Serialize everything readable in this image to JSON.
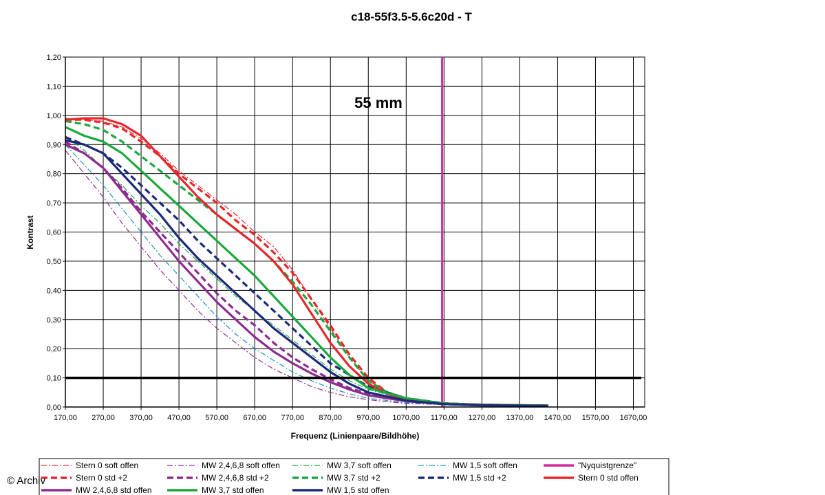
{
  "chart_data": {
    "type": "line",
    "title": "c18-55f3.5-5.6c20d - T",
    "xlabel": "Frequenz (Linienpaare/Bildhöhe)",
    "ylabel": "Kontrast",
    "annotation": "55 mm",
    "xlim": [
      170,
      1700
    ],
    "ylim": [
      0,
      1.2
    ],
    "x_ticks": [
      "170,00",
      "270,00",
      "370,00",
      "470,00",
      "570,00",
      "670,00",
      "770,00",
      "870,00",
      "970,00",
      "1070,00",
      "1170,00",
      "1270,00",
      "1370,00",
      "1470,00",
      "1570,00",
      "1670,00"
    ],
    "y_ticks": [
      "0,00",
      "0,10",
      "0,20",
      "0,30",
      "0,40",
      "0,50",
      "0,60",
      "0,70",
      "0,80",
      "0,90",
      "1,00",
      "1,10",
      "1,20"
    ],
    "grid": true,
    "legend_position": "bottom",
    "series": [
      {
        "name": "Stern 0 soft offen",
        "color": "#e8262b",
        "style": "dashdot",
        "width": 1.2,
        "points": [
          [
            170,
            0.99
          ],
          [
            220,
            0.985
          ],
          [
            270,
            0.98
          ],
          [
            320,
            0.96
          ],
          [
            370,
            0.92
          ],
          [
            420,
            0.87
          ],
          [
            470,
            0.81
          ],
          [
            520,
            0.76
          ],
          [
            570,
            0.71
          ],
          [
            620,
            0.66
          ],
          [
            670,
            0.6
          ],
          [
            720,
            0.55
          ],
          [
            770,
            0.47
          ],
          [
            820,
            0.37
          ],
          [
            870,
            0.27
          ],
          [
            920,
            0.17
          ],
          [
            970,
            0.09
          ],
          [
            1020,
            0.05
          ],
          [
            1070,
            0.03
          ],
          [
            1170,
            0.012
          ],
          [
            1270,
            0.008
          ],
          [
            1370,
            0.005
          ],
          [
            1445,
            0.005
          ]
        ]
      },
      {
        "name": "MW 2,4,6,8 soft offen",
        "color": "#8e2c90",
        "style": "dashdot",
        "width": 1.2,
        "points": [
          [
            170,
            0.88
          ],
          [
            220,
            0.8
          ],
          [
            270,
            0.72
          ],
          [
            320,
            0.63
          ],
          [
            370,
            0.55
          ],
          [
            420,
            0.47
          ],
          [
            470,
            0.4
          ],
          [
            520,
            0.33
          ],
          [
            570,
            0.27
          ],
          [
            620,
            0.22
          ],
          [
            670,
            0.17
          ],
          [
            720,
            0.13
          ],
          [
            770,
            0.1
          ],
          [
            820,
            0.07
          ],
          [
            870,
            0.05
          ],
          [
            920,
            0.035
          ],
          [
            970,
            0.025
          ],
          [
            1070,
            0.012
          ],
          [
            1170,
            0.008
          ],
          [
            1270,
            0.005
          ],
          [
            1445,
            0.004
          ]
        ]
      },
      {
        "name": "MW 3,7 soft offen",
        "color": "#1aa83c",
        "style": "dashdot",
        "width": 1.2,
        "points": [
          [
            170,
            0.93
          ],
          [
            220,
            0.88
          ],
          [
            270,
            0.82
          ],
          [
            320,
            0.76
          ],
          [
            370,
            0.69
          ],
          [
            420,
            0.63
          ],
          [
            470,
            0.56
          ],
          [
            520,
            0.5
          ],
          [
            570,
            0.44
          ],
          [
            620,
            0.38
          ],
          [
            670,
            0.33
          ],
          [
            720,
            0.28
          ],
          [
            770,
            0.23
          ],
          [
            820,
            0.18
          ],
          [
            870,
            0.13
          ],
          [
            920,
            0.09
          ],
          [
            970,
            0.06
          ],
          [
            1070,
            0.025
          ],
          [
            1170,
            0.012
          ],
          [
            1270,
            0.007
          ],
          [
            1445,
            0.005
          ]
        ]
      },
      {
        "name": "MW 1,5 soft offen",
        "color": "#1a8fc9",
        "style": "dashdot",
        "width": 1.2,
        "points": [
          [
            170,
            0.9
          ],
          [
            220,
            0.83
          ],
          [
            270,
            0.76
          ],
          [
            320,
            0.68
          ],
          [
            370,
            0.6
          ],
          [
            420,
            0.52
          ],
          [
            470,
            0.45
          ],
          [
            520,
            0.38
          ],
          [
            570,
            0.31
          ],
          [
            620,
            0.25
          ],
          [
            670,
            0.2
          ],
          [
            720,
            0.16
          ],
          [
            770,
            0.12
          ],
          [
            820,
            0.09
          ],
          [
            870,
            0.065
          ],
          [
            920,
            0.045
          ],
          [
            970,
            0.03
          ],
          [
            1070,
            0.015
          ],
          [
            1170,
            0.008
          ],
          [
            1270,
            0.005
          ],
          [
            1445,
            0.004
          ]
        ]
      },
      {
        "name": "\"Nyquistgrenze\"",
        "color": "#d62a9b",
        "style": "solid",
        "width": 3,
        "points": [
          [
            1165,
            0
          ],
          [
            1165,
            1.2
          ]
        ]
      },
      {
        "name": "Stern 0 std +2",
        "color": "#e8262b",
        "style": "dashed",
        "width": 3.2,
        "points": [
          [
            170,
            0.985
          ],
          [
            220,
            0.985
          ],
          [
            270,
            0.975
          ],
          [
            320,
            0.955
          ],
          [
            370,
            0.91
          ],
          [
            420,
            0.86
          ],
          [
            470,
            0.8
          ],
          [
            520,
            0.75
          ],
          [
            570,
            0.7
          ],
          [
            620,
            0.64
          ],
          [
            670,
            0.59
          ],
          [
            720,
            0.53
          ],
          [
            770,
            0.46
          ],
          [
            820,
            0.37
          ],
          [
            870,
            0.28
          ],
          [
            920,
            0.18
          ],
          [
            970,
            0.1
          ],
          [
            1020,
            0.05
          ],
          [
            1070,
            0.03
          ],
          [
            1170,
            0.012
          ],
          [
            1270,
            0.008
          ],
          [
            1370,
            0.005
          ],
          [
            1445,
            0.005
          ]
        ]
      },
      {
        "name": "MW 2,4,6,8 std +2",
        "color": "#8e2c90",
        "style": "dashed",
        "width": 3.2,
        "points": [
          [
            170,
            0.91
          ],
          [
            220,
            0.87
          ],
          [
            270,
            0.82
          ],
          [
            320,
            0.75
          ],
          [
            370,
            0.67
          ],
          [
            420,
            0.6
          ],
          [
            470,
            0.53
          ],
          [
            520,
            0.46
          ],
          [
            570,
            0.39
          ],
          [
            620,
            0.33
          ],
          [
            670,
            0.28
          ],
          [
            720,
            0.22
          ],
          [
            770,
            0.17
          ],
          [
            820,
            0.13
          ],
          [
            870,
            0.095
          ],
          [
            920,
            0.065
          ],
          [
            970,
            0.045
          ],
          [
            1070,
            0.02
          ],
          [
            1170,
            0.01
          ],
          [
            1270,
            0.006
          ],
          [
            1445,
            0.004
          ]
        ]
      },
      {
        "name": "MW 3,7 std +2",
        "color": "#1aa83c",
        "style": "dashed",
        "width": 3.2,
        "points": [
          [
            170,
            0.98
          ],
          [
            220,
            0.97
          ],
          [
            270,
            0.95
          ],
          [
            320,
            0.91
          ],
          [
            370,
            0.86
          ],
          [
            420,
            0.81
          ],
          [
            470,
            0.76
          ],
          [
            520,
            0.71
          ],
          [
            570,
            0.66
          ],
          [
            620,
            0.61
          ],
          [
            670,
            0.56
          ],
          [
            720,
            0.5
          ],
          [
            770,
            0.43
          ],
          [
            820,
            0.35
          ],
          [
            870,
            0.26
          ],
          [
            920,
            0.17
          ],
          [
            970,
            0.09
          ],
          [
            1020,
            0.05
          ],
          [
            1070,
            0.03
          ],
          [
            1170,
            0.012
          ],
          [
            1270,
            0.008
          ],
          [
            1445,
            0.005
          ]
        ]
      },
      {
        "name": "MW 1,5 std +2",
        "color": "#1b2a7a",
        "style": "dashed",
        "width": 3.2,
        "points": [
          [
            170,
            0.925
          ],
          [
            220,
            0.9
          ],
          [
            270,
            0.87
          ],
          [
            320,
            0.82
          ],
          [
            370,
            0.76
          ],
          [
            420,
            0.7
          ],
          [
            470,
            0.64
          ],
          [
            520,
            0.57
          ],
          [
            570,
            0.51
          ],
          [
            620,
            0.45
          ],
          [
            670,
            0.39
          ],
          [
            720,
            0.33
          ],
          [
            770,
            0.27
          ],
          [
            820,
            0.21
          ],
          [
            870,
            0.15
          ],
          [
            920,
            0.11
          ],
          [
            970,
            0.07
          ],
          [
            1070,
            0.03
          ],
          [
            1170,
            0.013
          ],
          [
            1270,
            0.007
          ],
          [
            1445,
            0.005
          ]
        ]
      },
      {
        "name": "Stern 0 std offen",
        "color": "#e8262b",
        "style": "solid",
        "width": 3.2,
        "points": [
          [
            170,
            0.985
          ],
          [
            220,
            0.99
          ],
          [
            270,
            0.99
          ],
          [
            320,
            0.97
          ],
          [
            370,
            0.93
          ],
          [
            420,
            0.86
          ],
          [
            470,
            0.79
          ],
          [
            520,
            0.72
          ],
          [
            570,
            0.66
          ],
          [
            620,
            0.61
          ],
          [
            670,
            0.56
          ],
          [
            720,
            0.5
          ],
          [
            770,
            0.42
          ],
          [
            820,
            0.32
          ],
          [
            870,
            0.22
          ],
          [
            920,
            0.14
          ],
          [
            970,
            0.08
          ],
          [
            1020,
            0.045
          ],
          [
            1070,
            0.025
          ],
          [
            1170,
            0.012
          ],
          [
            1270,
            0.008
          ],
          [
            1445,
            0.005
          ]
        ]
      },
      {
        "name": "MW 2,4,6,8 std offen",
        "color": "#8e2c90",
        "style": "solid",
        "width": 3.2,
        "points": [
          [
            170,
            0.9
          ],
          [
            220,
            0.87
          ],
          [
            270,
            0.82
          ],
          [
            320,
            0.74
          ],
          [
            370,
            0.66
          ],
          [
            420,
            0.58
          ],
          [
            470,
            0.5
          ],
          [
            520,
            0.43
          ],
          [
            570,
            0.36
          ],
          [
            620,
            0.3
          ],
          [
            670,
            0.24
          ],
          [
            720,
            0.19
          ],
          [
            770,
            0.15
          ],
          [
            820,
            0.115
          ],
          [
            870,
            0.085
          ],
          [
            920,
            0.06
          ],
          [
            970,
            0.04
          ],
          [
            1070,
            0.02
          ],
          [
            1170,
            0.01
          ],
          [
            1270,
            0.006
          ],
          [
            1445,
            0.004
          ]
        ]
      },
      {
        "name": "MW 3,7 std offen",
        "color": "#1aa83c",
        "style": "solid",
        "width": 3.2,
        "points": [
          [
            170,
            0.96
          ],
          [
            220,
            0.93
          ],
          [
            270,
            0.91
          ],
          [
            320,
            0.87
          ],
          [
            370,
            0.81
          ],
          [
            420,
            0.75
          ],
          [
            470,
            0.69
          ],
          [
            520,
            0.63
          ],
          [
            570,
            0.57
          ],
          [
            620,
            0.51
          ],
          [
            670,
            0.45
          ],
          [
            720,
            0.38
          ],
          [
            770,
            0.31
          ],
          [
            820,
            0.24
          ],
          [
            870,
            0.17
          ],
          [
            920,
            0.11
          ],
          [
            970,
            0.065
          ],
          [
            1070,
            0.03
          ],
          [
            1170,
            0.012
          ],
          [
            1270,
            0.007
          ],
          [
            1445,
            0.005
          ]
        ]
      },
      {
        "name": "MW 1,5 std offen",
        "color": "#1b2a7a",
        "style": "solid",
        "width": 3.2,
        "points": [
          [
            170,
            0.915
          ],
          [
            220,
            0.9
          ],
          [
            270,
            0.87
          ],
          [
            320,
            0.8
          ],
          [
            370,
            0.73
          ],
          [
            420,
            0.66
          ],
          [
            470,
            0.58
          ],
          [
            520,
            0.51
          ],
          [
            570,
            0.45
          ],
          [
            620,
            0.39
          ],
          [
            670,
            0.33
          ],
          [
            720,
            0.27
          ],
          [
            770,
            0.22
          ],
          [
            820,
            0.17
          ],
          [
            870,
            0.12
          ],
          [
            920,
            0.08
          ],
          [
            970,
            0.05
          ],
          [
            1070,
            0.022
          ],
          [
            1170,
            0.01
          ],
          [
            1270,
            0.006
          ],
          [
            1445,
            0.004
          ]
        ]
      }
    ],
    "reference_lines": [
      {
        "axis": "y",
        "value": 0.1,
        "color": "#000000"
      }
    ],
    "legend": [
      "Stern 0 soft offen",
      "MW 2,4,6,8 soft offen",
      "MW 3,7 soft offen",
      "MW 1,5 soft offen",
      "\"Nyquistgrenze\"",
      "Stern 0 std +2",
      "MW 2,4,6,8 std +2",
      "MW 3,7 std +2",
      "MW 1,5 std +2",
      "Stern 0 std offen",
      "MW 2,4,6,8 std offen",
      "MW 3,7 std offen",
      "MW 1,5 std offen"
    ]
  },
  "watermark": "© Archiv"
}
